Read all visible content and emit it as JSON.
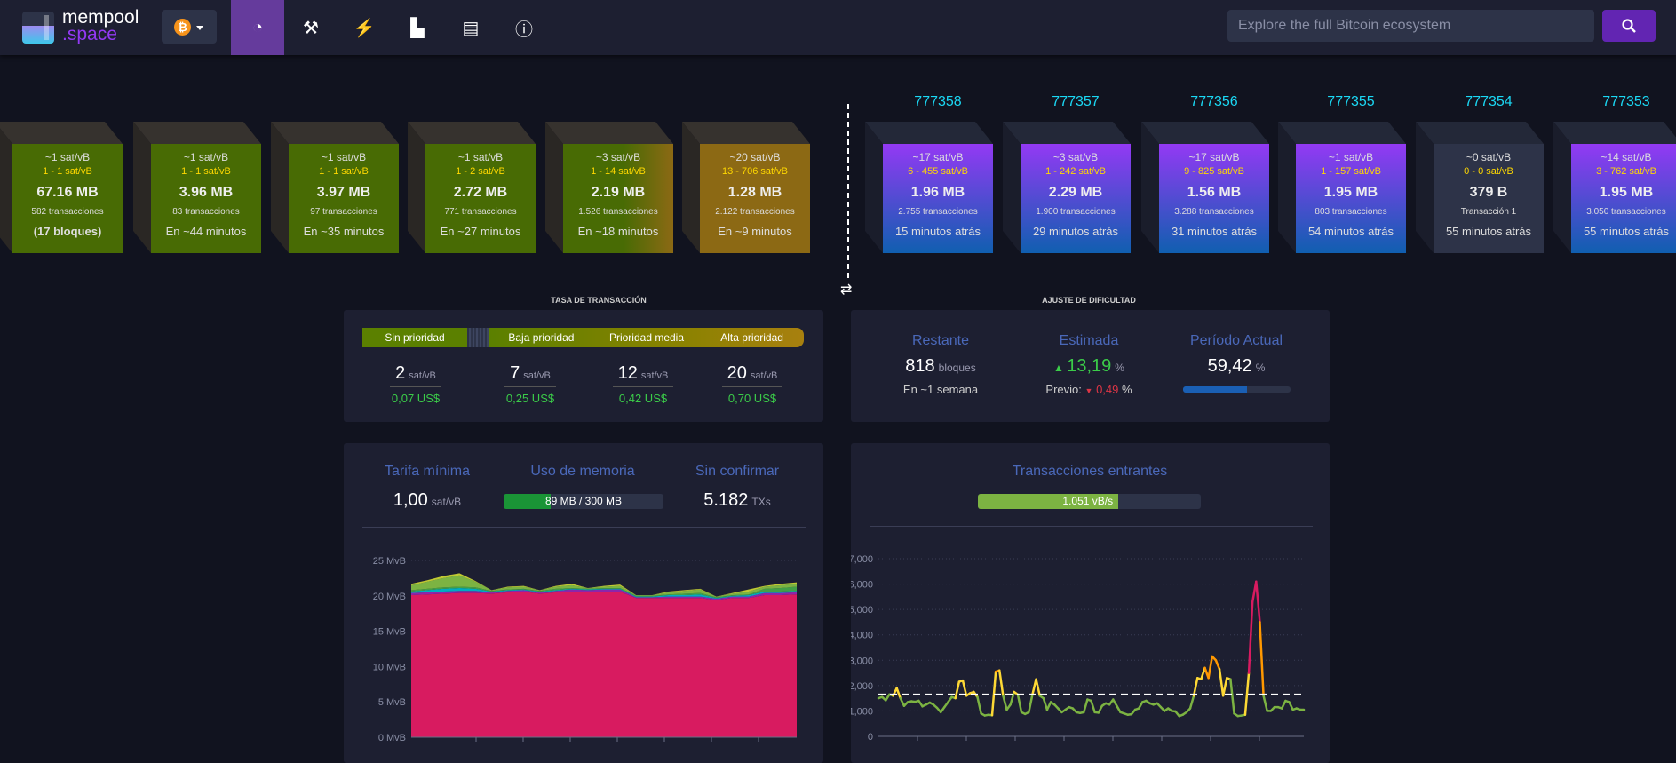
{
  "header": {
    "logo_top": "mempool",
    "logo_bottom": ".space",
    "network_icon": "bitcoin-icon",
    "nav": [
      {
        "icon": "dashboard-icon",
        "glyph": "◔",
        "active": true
      },
      {
        "icon": "hammer-icon",
        "glyph": "⚒"
      },
      {
        "icon": "lightning-icon",
        "glyph": "⚡"
      },
      {
        "icon": "graphs-icon",
        "glyph": "▙"
      },
      {
        "icon": "docs-icon",
        "glyph": "▤"
      },
      {
        "icon": "info-icon",
        "glyph": "ⓘ"
      }
    ],
    "search_placeholder": "Explore the full Bitcoin ecosystem",
    "search_icon": "search-icon"
  },
  "mempool_blocks": [
    {
      "fee": "~1 sat/vB",
      "range": "1 - 1 sat/vB",
      "size": "67.16 MB",
      "txs": "582 transacciones",
      "eta": "(17 bloques)",
      "color": "green"
    },
    {
      "fee": "~1 sat/vB",
      "range": "1 - 1 sat/vB",
      "size": "3.96 MB",
      "txs": "83 transacciones",
      "eta": "En ~44 minutos",
      "color": "green"
    },
    {
      "fee": "~1 sat/vB",
      "range": "1 - 1 sat/vB",
      "size": "3.97 MB",
      "txs": "97 transacciones",
      "eta": "En ~35 minutos",
      "color": "green"
    },
    {
      "fee": "~1 sat/vB",
      "range": "1 - 2 sat/vB",
      "size": "2.72 MB",
      "txs": "771 transacciones",
      "eta": "En ~27 minutos",
      "color": "green"
    },
    {
      "fee": "~3 sat/vB",
      "range": "1 - 14 sat/vB",
      "size": "2.19 MB",
      "txs": "1.526 transacciones",
      "eta": "En ~18 minutos",
      "color": "mixed"
    },
    {
      "fee": "~20 sat/vB",
      "range": "13 - 706 sat/vB",
      "size": "1.28 MB",
      "txs": "2.122 transacciones",
      "eta": "En ~9 minutos",
      "color": "gold"
    }
  ],
  "mined_blocks": [
    {
      "height": "777358",
      "fee": "~17 sat/vB",
      "range": "6 - 455 sat/vB",
      "size": "1.96 MB",
      "txs": "2.755 transacciones",
      "time": "15 minutos atrás"
    },
    {
      "height": "777357",
      "fee": "~3 sat/vB",
      "range": "1 - 242 sat/vB",
      "size": "2.29 MB",
      "txs": "1.900 transacciones",
      "time": "29 minutos atrás"
    },
    {
      "height": "777356",
      "fee": "~17 sat/vB",
      "range": "9 - 825 sat/vB",
      "size": "1.56 MB",
      "txs": "3.288 transacciones",
      "time": "31 minutos atrás"
    },
    {
      "height": "777355",
      "fee": "~1 sat/vB",
      "range": "1 - 157 sat/vB",
      "size": "1.95 MB",
      "txs": "803 transacciones",
      "time": "54 minutos atrás"
    },
    {
      "height": "777354",
      "fee": "~0 sat/vB",
      "range": "0 - 0 sat/vB",
      "size": "379 B",
      "txs": "Transacción 1",
      "time": "55 minutos atrás",
      "empty": true
    },
    {
      "height": "777353",
      "fee": "~14 sat/vB",
      "range": "3 - 762 sat/vB",
      "size": "1.95 MB",
      "txs": "3.050 transacciones",
      "time": "55 minutos atrás"
    }
  ],
  "fees": {
    "title": "TASA DE TRANSACCIÓN",
    "labels": [
      "Sin prioridad",
      "Baja prioridad",
      "Prioridad media",
      "Alta prioridad"
    ],
    "items": [
      {
        "v": "2",
        "u": "sat/vB",
        "usd": "0,07 US$"
      },
      {
        "v": "7",
        "u": "sat/vB",
        "usd": "0,25 US$"
      },
      {
        "v": "12",
        "u": "sat/vB",
        "usd": "0,42 US$"
      },
      {
        "v": "20",
        "u": "sat/vB",
        "usd": "0,70 US$"
      }
    ]
  },
  "difficulty": {
    "title": "AJUSTE DE DIFICULTAD",
    "remaining_label": "Restante",
    "remaining_value": "818",
    "remaining_unit": "bloques",
    "remaining_sub": "En ~1 semana",
    "estimate_label": "Estimada",
    "estimate_value": "13,19",
    "estimate_unit": "%",
    "previous_label": "Previo:",
    "previous_value": "0,49",
    "previous_unit": "%",
    "period_label": "Período Actual",
    "period_value": "59,42",
    "period_unit": "%",
    "period_progress": 59.42
  },
  "mempool": {
    "min_fee_label": "Tarifa mínima",
    "min_fee_value": "1,00",
    "min_fee_unit": "sat/vB",
    "memory_label": "Uso de memoria",
    "memory_text": "89 MB / 300 MB",
    "memory_fraction": 0.297,
    "unconfirmed_label": "Sin confirmar",
    "unconfirmed_value": "5.182",
    "unconfirmed_unit": "TXs"
  },
  "incoming": {
    "title": "Transacciones entrantes",
    "rate_text": "1.051 vB/s",
    "rate_fraction": 0.63
  },
  "chart_data": [
    {
      "type": "area",
      "ylim": [
        0,
        25
      ],
      "yticks": [
        "0 MvB",
        "5 MvB",
        "10 MvB",
        "15 MvB",
        "20 MvB",
        "25 MvB"
      ],
      "grid": true,
      "series": [
        {
          "color": "#d81b60",
          "values": [
            20.1,
            20.2,
            20.3,
            20.4,
            20.4,
            20.3,
            20.5,
            20.6,
            20.3,
            20.5,
            20.6,
            20.6,
            20.6,
            20.6,
            19.7,
            19.7,
            19.7,
            19.7,
            19.7,
            19.4,
            19.7,
            19.7,
            20.1,
            20.1,
            20.2
          ]
        },
        {
          "color": "#8e24aa",
          "values": [
            0.3,
            0.3,
            0.3,
            0.3,
            0.3,
            0.2,
            0.2,
            0.2,
            0.2,
            0.2,
            0.3,
            0.2,
            0.3,
            0.3,
            0.1,
            0.1,
            0.2,
            0.2,
            0.2,
            0.2,
            0.2,
            0.2,
            0.3,
            0.3,
            0.3
          ]
        },
        {
          "color": "#00acc1",
          "values": [
            0.2,
            0.3,
            0.4,
            0.4,
            0.3,
            0.1,
            0.1,
            0.1,
            0.1,
            0.1,
            0.1,
            0.1,
            0.1,
            0.1,
            0.1,
            0.1,
            0.2,
            0.2,
            0.3,
            0.1,
            0.1,
            0.2,
            0.2,
            0.2,
            0.2
          ]
        },
        {
          "color": "#43a047",
          "values": [
            0.2,
            0.2,
            0.2,
            0.2,
            0.2,
            0.1,
            0.1,
            0.1,
            0.1,
            0.2,
            0.1,
            0.1,
            0.1,
            0.1,
            0.1,
            0.1,
            0.1,
            0.2,
            0.2,
            0.1,
            0.1,
            0.1,
            0.4,
            0.5,
            0.6
          ]
        },
        {
          "color": "#7cb342",
          "values": [
            0.7,
            1.0,
            1.3,
            1.6,
            0.8,
            0.1,
            0.3,
            0.3,
            0.1,
            0.3,
            0.4,
            0.1,
            0.2,
            0.3,
            0.1,
            0.1,
            0.3,
            0.4,
            0.5,
            0.1,
            0.2,
            0.4,
            0.3,
            0.4,
            0.4
          ]
        },
        {
          "color": "#c0ca33",
          "values": [
            0.2,
            0.2,
            0.3,
            0.3,
            0.1,
            0.0,
            0.1,
            0.1,
            0.0,
            0.1,
            0.2,
            0.0,
            0.1,
            0.2,
            0.0,
            0.0,
            0.1,
            0.1,
            0.1,
            0.0,
            0.1,
            0.3,
            0.1,
            0.2,
            0.2
          ]
        }
      ]
    },
    {
      "type": "line",
      "ylim": [
        0,
        7000
      ],
      "yticks": [
        "0",
        "1,000",
        "2,000",
        "3,000",
        "4,000",
        "5,000",
        "6,000",
        "7,000"
      ],
      "grid": true,
      "threshold": 1650,
      "values": [
        1500,
        1550,
        1420,
        1650,
        1600,
        1900,
        1500,
        1200,
        1350,
        1380,
        1360,
        1400,
        1180,
        1250,
        1330,
        1250,
        1120,
        950,
        1150,
        1350,
        1550,
        1500,
        2150,
        2200,
        1600,
        1700,
        1750,
        1550,
        900,
        820,
        850,
        830,
        2550,
        2600,
        1600,
        1050,
        1250,
        1750,
        1650,
        950,
        880,
        950,
        1650,
        2250,
        1600,
        1500,
        1050,
        1350,
        1250,
        1100,
        950,
        1050,
        1150,
        1100,
        950,
        920,
        950,
        1450,
        1400,
        950,
        930,
        1200,
        1300,
        1250,
        1450,
        1200,
        950,
        900,
        850,
        870,
        1050,
        1100,
        1350,
        1400,
        1300,
        1250,
        1300,
        1150,
        1000,
        1100,
        1000,
        980,
        800,
        850,
        950,
        1100,
        1600,
        2300,
        2250,
        2700,
        2300,
        3150,
        3000,
        2650,
        1600,
        2300,
        2250,
        900,
        800,
        820,
        850,
        2500,
        5300,
        6100,
        4500,
        1600,
        1000,
        1000,
        1150,
        1150,
        1100,
        1400,
        1350,
        1050,
        1100,
        1050,
        1050
      ]
    }
  ]
}
